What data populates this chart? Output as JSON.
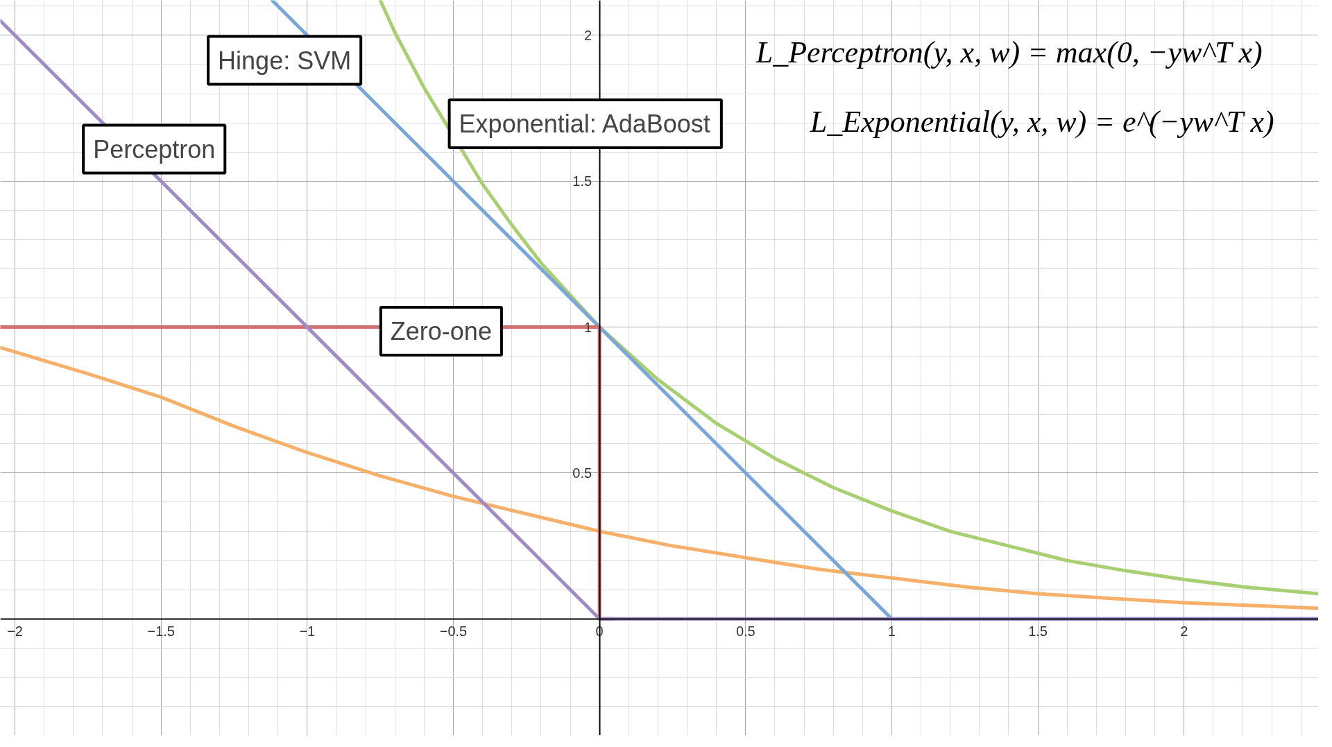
{
  "chart_data": {
    "type": "line",
    "xlim": [
      -2.05,
      2.46
    ],
    "ylim": [
      -0.4,
      2.12
    ],
    "xticks": [
      -2,
      -1.5,
      -1,
      -0.5,
      0,
      0.5,
      1,
      1.5,
      2
    ],
    "yticks": [
      0.5,
      1,
      1.5,
      2
    ],
    "grid": true,
    "series": [
      {
        "color": "#f7b06a",
        "x": [
          -2.05,
          -1.75,
          -1.5,
          -1.25,
          -1,
          -0.75,
          -0.5,
          -0.25,
          0,
          0.25,
          0.5,
          0.75,
          1,
          1.25,
          1.5,
          1.75,
          2,
          2.25,
          2.46
        ],
        "values": [
          0.93,
          0.84,
          0.76,
          0.66,
          0.57,
          0.49,
          0.42,
          0.36,
          0.3,
          0.25,
          0.21,
          0.17,
          0.14,
          0.11,
          0.086,
          0.07,
          0.055,
          0.045,
          0.036
        ]
      },
      {
        "color": "#a9cf73",
        "x": [
          -0.75,
          -0.7,
          -0.6,
          -0.4,
          -0.3,
          -0.2,
          -0.1,
          0,
          0.2,
          0.4,
          0.6,
          0.8,
          1,
          1.2,
          1.4,
          1.6,
          1.8,
          2,
          2.2,
          2.46
        ],
        "values": [
          2.12,
          2.01,
          1.82,
          1.49,
          1.35,
          1.22,
          1.11,
          1,
          0.82,
          0.67,
          0.55,
          0.45,
          0.37,
          0.3,
          0.25,
          0.2,
          0.165,
          0.135,
          0.11,
          0.086
        ]
      },
      {
        "color": "#7ba7d8",
        "x": [
          -1.12,
          1,
          2.46
        ],
        "values": [
          2.12,
          0,
          0
        ]
      },
      {
        "color": "#d07070",
        "x": [
          -2.05,
          0,
          0,
          0.05
        ],
        "values": [
          1,
          1,
          0,
          0
        ]
      },
      {
        "color": "#a08bc4",
        "x": [
          -2.05,
          0,
          2.46
        ],
        "values": [
          2.05,
          0,
          0
        ]
      }
    ],
    "annotations": [
      "Hinge: SVM",
      "Perceptron",
      "Exponential: AdaBoost",
      "Zero-one",
      "L_Perceptron(y, x, w) = max(0, −yw^T x)",
      "L_Exponential(y, x, w) = e^(−yw^T x)"
    ]
  }
}
